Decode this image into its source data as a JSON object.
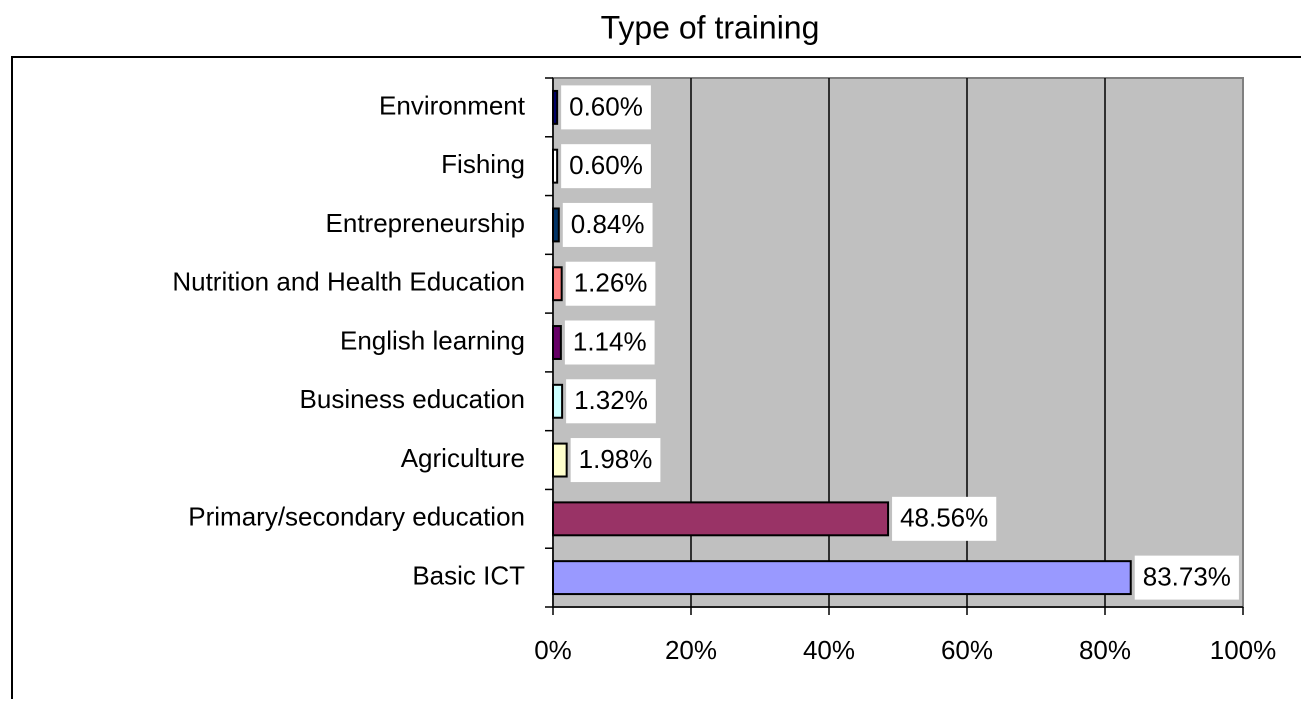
{
  "chart_data": {
    "type": "bar",
    "orientation": "horizontal",
    "title": "Type of training",
    "categories": [
      "Environment",
      "Fishing",
      "Entrepreneurship",
      "Nutrition and Health Education",
      "English learning",
      "Business education",
      "Agriculture",
      "Primary/secondary education",
      "Basic ICT"
    ],
    "values": [
      0.6,
      0.6,
      0.84,
      1.26,
      1.14,
      1.32,
      1.98,
      48.56,
      83.73
    ],
    "value_labels": [
      "0.60%",
      "0.60%",
      "0.84%",
      "1.26%",
      "1.14%",
      "1.32%",
      "1.98%",
      "48.56%",
      "83.73%"
    ],
    "colors": [
      "#000066",
      "#ffffff",
      "#003366",
      "#ff8080",
      "#660066",
      "#ccffff",
      "#ffffcc",
      "#993366",
      "#9999ff"
    ],
    "xlim": [
      0,
      100
    ],
    "xticks": [
      {
        "value": 0,
        "label": "0%"
      },
      {
        "value": 20,
        "label": "20%"
      },
      {
        "value": 40,
        "label": "40%"
      },
      {
        "value": 60,
        "label": "60%"
      },
      {
        "value": 80,
        "label": "80%"
      },
      {
        "value": 100,
        "label": "100%"
      }
    ],
    "grid": true
  }
}
